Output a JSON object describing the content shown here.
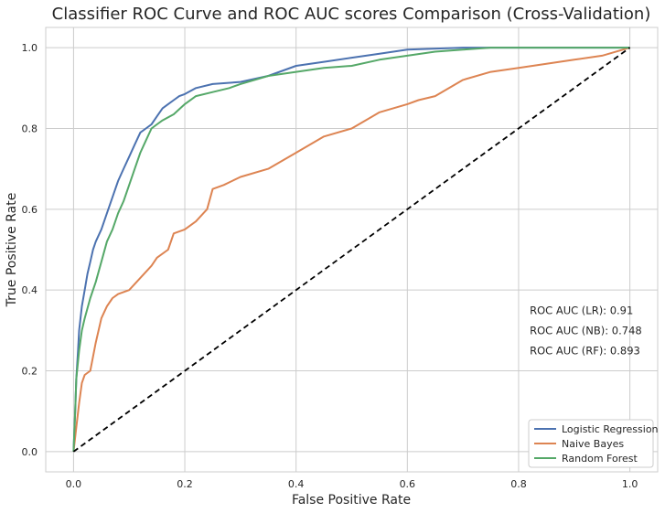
{
  "chart_data": {
    "type": "line",
    "title": "Classifier ROC Curve and ROC AUC scores Comparison (Cross-Validation)",
    "xlabel": "False Positive Rate",
    "ylabel": "True Positive Rate",
    "xlim": [
      -0.05,
      1.05
    ],
    "ylim": [
      -0.05,
      1.05
    ],
    "xticks": [
      0.0,
      0.2,
      0.4,
      0.6,
      0.8,
      1.0
    ],
    "yticks": [
      0.0,
      0.2,
      0.4,
      0.6,
      0.8,
      1.0
    ],
    "xtick_labels": [
      "0.0",
      "0.2",
      "0.4",
      "0.6",
      "0.8",
      "1.0"
    ],
    "ytick_labels": [
      "0.0",
      "0.2",
      "0.4",
      "0.6",
      "0.8",
      "1.0"
    ],
    "grid": true,
    "legend_position": "lower-right",
    "series": [
      {
        "name": "Logistic Regression",
        "color": "#4c72b0",
        "x": [
          0.0,
          0.003,
          0.005,
          0.008,
          0.01,
          0.015,
          0.02,
          0.025,
          0.03,
          0.035,
          0.04,
          0.05,
          0.06,
          0.07,
          0.08,
          0.09,
          0.1,
          0.11,
          0.12,
          0.13,
          0.14,
          0.15,
          0.16,
          0.17,
          0.18,
          0.19,
          0.2,
          0.22,
          0.25,
          0.3,
          0.35,
          0.4,
          0.45,
          0.5,
          0.55,
          0.6,
          0.7,
          0.8,
          0.9,
          1.0
        ],
        "y": [
          0.0,
          0.1,
          0.18,
          0.25,
          0.3,
          0.36,
          0.4,
          0.44,
          0.47,
          0.5,
          0.52,
          0.55,
          0.59,
          0.63,
          0.67,
          0.7,
          0.73,
          0.76,
          0.79,
          0.8,
          0.81,
          0.83,
          0.85,
          0.86,
          0.87,
          0.88,
          0.885,
          0.9,
          0.91,
          0.915,
          0.93,
          0.955,
          0.965,
          0.975,
          0.985,
          0.995,
          1.0,
          1.0,
          1.0,
          1.0
        ]
      },
      {
        "name": "Naive Bayes",
        "color": "#dd8452",
        "x": [
          0.0,
          0.005,
          0.01,
          0.015,
          0.02,
          0.03,
          0.04,
          0.05,
          0.06,
          0.07,
          0.08,
          0.1,
          0.12,
          0.14,
          0.15,
          0.17,
          0.18,
          0.2,
          0.22,
          0.24,
          0.25,
          0.27,
          0.3,
          0.35,
          0.4,
          0.45,
          0.5,
          0.55,
          0.6,
          0.62,
          0.65,
          0.7,
          0.75,
          0.8,
          0.85,
          0.9,
          0.95,
          1.0
        ],
        "y": [
          0.0,
          0.06,
          0.12,
          0.17,
          0.19,
          0.2,
          0.27,
          0.33,
          0.36,
          0.38,
          0.39,
          0.4,
          0.43,
          0.46,
          0.48,
          0.5,
          0.54,
          0.55,
          0.57,
          0.6,
          0.65,
          0.66,
          0.68,
          0.7,
          0.74,
          0.78,
          0.8,
          0.84,
          0.86,
          0.87,
          0.88,
          0.92,
          0.94,
          0.95,
          0.96,
          0.97,
          0.98,
          1.0
        ]
      },
      {
        "name": "Random Forest",
        "color": "#55a868",
        "x": [
          0.0,
          0.003,
          0.005,
          0.01,
          0.015,
          0.02,
          0.03,
          0.04,
          0.05,
          0.06,
          0.07,
          0.08,
          0.09,
          0.1,
          0.11,
          0.12,
          0.13,
          0.14,
          0.15,
          0.16,
          0.18,
          0.2,
          0.22,
          0.25,
          0.28,
          0.3,
          0.35,
          0.4,
          0.45,
          0.5,
          0.55,
          0.6,
          0.65,
          0.7,
          0.75,
          0.8,
          0.9,
          1.0
        ],
        "y": [
          0.0,
          0.1,
          0.18,
          0.25,
          0.3,
          0.33,
          0.38,
          0.42,
          0.47,
          0.52,
          0.55,
          0.59,
          0.62,
          0.66,
          0.7,
          0.74,
          0.77,
          0.8,
          0.81,
          0.82,
          0.835,
          0.86,
          0.88,
          0.89,
          0.9,
          0.91,
          0.93,
          0.94,
          0.95,
          0.955,
          0.97,
          0.98,
          0.99,
          0.995,
          1.0,
          1.0,
          1.0,
          1.0
        ]
      },
      {
        "name": "",
        "color": "#000000",
        "dashed": true,
        "x": [
          0.0,
          1.0
        ],
        "y": [
          0.0,
          1.0
        ]
      }
    ],
    "annotations": [
      {
        "text": "ROC AUC (LR): 0.91",
        "x": 0.82,
        "y": 0.35
      },
      {
        "text": "ROC AUC (NB): 0.748",
        "x": 0.82,
        "y": 0.3
      },
      {
        "text": "ROC AUC (RF): 0.893",
        "x": 0.82,
        "y": 0.25
      }
    ]
  }
}
